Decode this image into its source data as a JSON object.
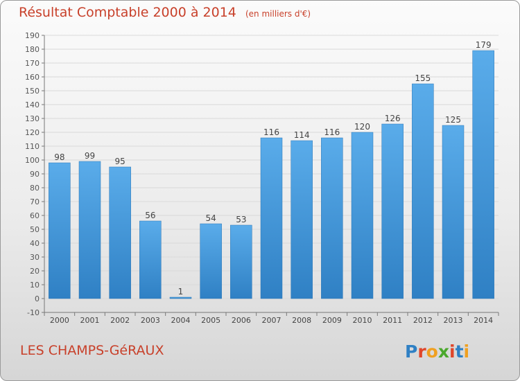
{
  "title": "Résultat Comptable 2000 à 2014",
  "subtitle": "(en milliers d'€)",
  "location": "LES CHAMPS-GéRAUX",
  "brand": "Proxiti",
  "colors": {
    "title_text": "#c8402a",
    "bar_light": "#5aacea",
    "bar_dark": "#2f80c4",
    "grid": "#d9d9d9",
    "axis": "#777777"
  },
  "chart_data": {
    "type": "bar",
    "categories": [
      "2000",
      "2001",
      "2002",
      "2003",
      "2004",
      "2005",
      "2006",
      "2007",
      "2008",
      "2009",
      "2010",
      "2011",
      "2012",
      "2013",
      "2014"
    ],
    "values": [
      98,
      99,
      95,
      56,
      1,
      54,
      53,
      116,
      114,
      116,
      120,
      126,
      155,
      125,
      179
    ],
    "ylim": [
      -10,
      190
    ],
    "yticks": [
      -10,
      0,
      10,
      20,
      30,
      40,
      50,
      60,
      70,
      80,
      90,
      100,
      110,
      120,
      130,
      140,
      150,
      160,
      170,
      180,
      190
    ],
    "grid": true,
    "data_labels": true
  }
}
